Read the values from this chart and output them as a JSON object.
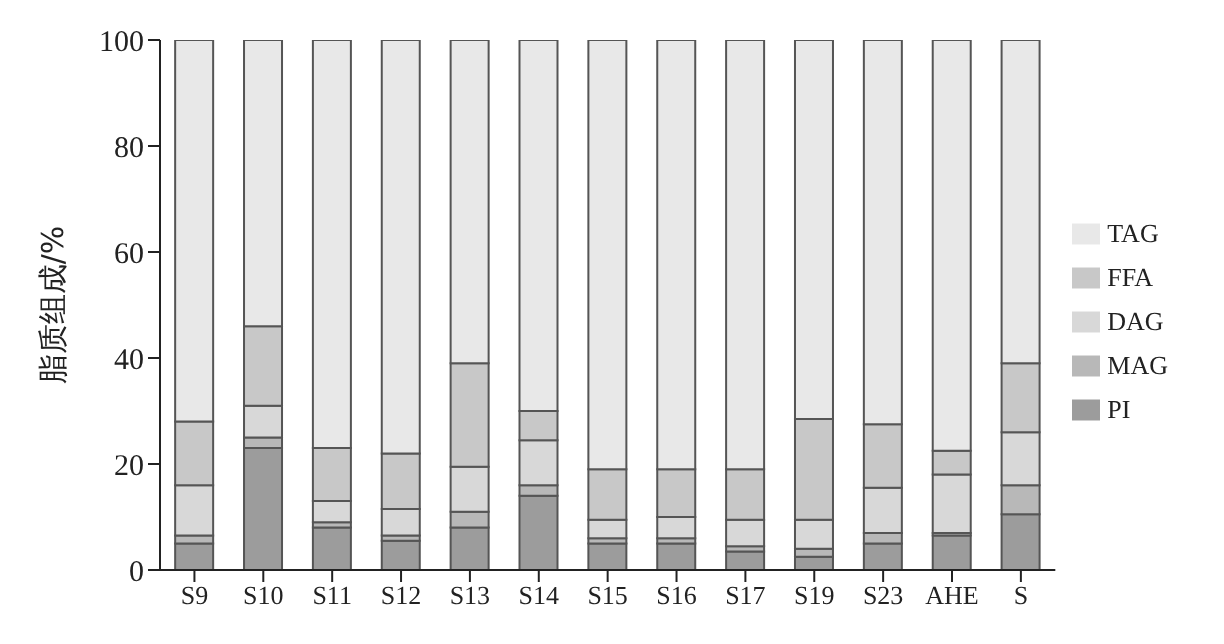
{
  "chart_data": {
    "type": "bar",
    "stacked": true,
    "ylabel": "脂质组成/%",
    "categories": [
      "S9",
      "S10",
      "S11",
      "S12",
      "S13",
      "S14",
      "S15",
      "S16",
      "S17",
      "S19",
      "S23",
      "AHE",
      "S"
    ],
    "series": [
      {
        "name": "PI",
        "color": "#9c9c9c",
        "values": [
          5,
          23,
          8,
          5.5,
          8,
          14,
          5,
          5,
          3.5,
          2.5,
          5,
          6.5,
          10.5
        ]
      },
      {
        "name": "MAG",
        "color": "#b8b8b8",
        "values": [
          1.5,
          2,
          1,
          1,
          3,
          2,
          1,
          1,
          1,
          1.5,
          2,
          0.5,
          5.5
        ]
      },
      {
        "name": "DAG",
        "color": "#d8d8d8",
        "values": [
          9.5,
          6,
          4,
          5,
          8.5,
          8.5,
          3.5,
          4,
          5,
          5.5,
          8.5,
          11,
          10
        ]
      },
      {
        "name": "FFA",
        "color": "#c8c8c8",
        "values": [
          12,
          15,
          10,
          10.5,
          19.5,
          5.5,
          9.5,
          9,
          9.5,
          19,
          12,
          4.5,
          13
        ]
      },
      {
        "name": "TAG",
        "color": "#e8e8e8",
        "values": [
          72,
          54,
          77,
          78,
          61,
          70,
          81,
          81,
          81,
          71.5,
          72.5,
          77.5,
          61
        ]
      }
    ],
    "ylim": [
      0,
      100
    ],
    "yticks": [
      0,
      20,
      40,
      60,
      80,
      100
    ],
    "legend": "right"
  }
}
